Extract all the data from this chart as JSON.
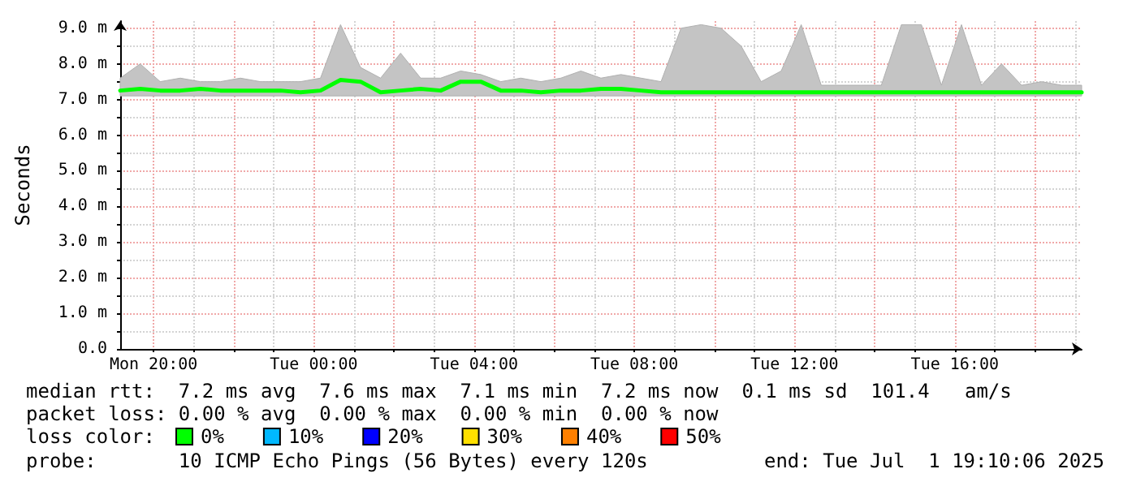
{
  "chart_data": {
    "type": "line",
    "ylabel": "Seconds",
    "legend_title": "loss color:",
    "legend": "bottom",
    "grid": true,
    "marker": "none",
    "line_style": "solid",
    "x": [
      "2025-06-30T19:10",
      "2025-06-30T19:40",
      "2025-06-30T20:10",
      "2025-06-30T20:40",
      "2025-06-30T21:10",
      "2025-06-30T21:40",
      "2025-06-30T22:10",
      "2025-06-30T22:40",
      "2025-06-30T23:10",
      "2025-06-30T23:40",
      "2025-07-01T00:10",
      "2025-07-01T00:40",
      "2025-07-01T01:10",
      "2025-07-01T01:40",
      "2025-07-01T02:10",
      "2025-07-01T02:40",
      "2025-07-01T03:10",
      "2025-07-01T03:40",
      "2025-07-01T04:10",
      "2025-07-01T04:40",
      "2025-07-01T05:10",
      "2025-07-01T05:40",
      "2025-07-01T06:10",
      "2025-07-01T06:40",
      "2025-07-01T07:10",
      "2025-07-01T07:40",
      "2025-07-01T08:10",
      "2025-07-01T08:40",
      "2025-07-01T09:10",
      "2025-07-01T09:40",
      "2025-07-01T10:10",
      "2025-07-01T10:40",
      "2025-07-01T11:10",
      "2025-07-01T11:40",
      "2025-07-01T12:10",
      "2025-07-01T12:40",
      "2025-07-01T13:10",
      "2025-07-01T13:40",
      "2025-07-01T14:10",
      "2025-07-01T14:40",
      "2025-07-01T15:10",
      "2025-07-01T15:40",
      "2025-07-01T16:10",
      "2025-07-01T16:40",
      "2025-07-01T17:10",
      "2025-07-01T17:40",
      "2025-07-01T18:10",
      "2025-07-01T18:40",
      "2025-07-01T19:10"
    ],
    "series": [
      {
        "name": "0%",
        "color": "#00ff00",
        "values": [
          7.25,
          7.3,
          7.25,
          7.25,
          7.3,
          7.25,
          7.25,
          7.25,
          7.25,
          7.2,
          7.25,
          7.55,
          7.5,
          7.2,
          7.25,
          7.3,
          7.25,
          7.5,
          7.5,
          7.25,
          7.25,
          7.2,
          7.25,
          7.25,
          7.3,
          7.3,
          7.25,
          7.2,
          7.2,
          7.2,
          7.2,
          7.2,
          7.2,
          7.2,
          7.2,
          7.2,
          7.2,
          7.2,
          7.2,
          7.2,
          7.2,
          7.2,
          7.2,
          7.2,
          7.2,
          7.2,
          7.2,
          7.2,
          7.2
        ],
        "lower": [
          7.1,
          7.1,
          7.1,
          7.1,
          7.1,
          7.1,
          7.1,
          7.1,
          7.1,
          7.1,
          7.1,
          7.1,
          7.1,
          7.1,
          7.1,
          7.1,
          7.1,
          7.1,
          7.1,
          7.1,
          7.1,
          7.1,
          7.1,
          7.1,
          7.1,
          7.1,
          7.1,
          7.1,
          7.1,
          7.1,
          7.1,
          7.1,
          7.1,
          7.1,
          7.1,
          7.1,
          7.1,
          7.1,
          7.1,
          7.1,
          7.1,
          7.1,
          7.1,
          7.1,
          7.1,
          7.1,
          7.1,
          7.1,
          7.1
        ],
        "upper": [
          7.6,
          8.0,
          7.5,
          7.6,
          7.5,
          7.5,
          7.6,
          7.5,
          7.5,
          7.5,
          7.6,
          9.1,
          7.9,
          7.6,
          8.3,
          7.6,
          7.6,
          7.8,
          7.7,
          7.5,
          7.6,
          7.5,
          7.6,
          7.8,
          7.6,
          7.7,
          7.6,
          7.5,
          9.0,
          9.1,
          9.0,
          8.5,
          7.5,
          7.8,
          9.1,
          7.4,
          7.4,
          7.4,
          7.4,
          9.1,
          9.1,
          7.4,
          9.1,
          7.4,
          8.0,
          7.4,
          7.5,
          7.4,
          7.4
        ]
      },
      {
        "name": "10%",
        "color": "#00b8ff",
        "values": [
          null,
          null,
          null,
          null,
          null,
          null,
          null,
          null,
          null,
          null,
          null,
          null,
          null,
          null,
          null,
          null,
          null,
          null,
          null,
          null,
          null,
          null,
          null,
          null,
          null,
          null,
          null,
          null,
          null,
          null,
          null,
          null,
          null,
          null,
          null,
          null,
          null,
          null,
          null,
          null,
          null,
          null,
          null,
          null,
          null,
          null,
          null,
          null,
          null
        ]
      },
      {
        "name": "20%",
        "color": "#0000ff",
        "values": [
          null,
          null,
          null,
          null,
          null,
          null,
          null,
          null,
          null,
          null,
          null,
          null,
          null,
          null,
          null,
          null,
          null,
          null,
          null,
          null,
          null,
          null,
          null,
          null,
          null,
          null,
          null,
          null,
          null,
          null,
          null,
          null,
          null,
          null,
          null,
          null,
          null,
          null,
          null,
          null,
          null,
          null,
          null,
          null,
          null,
          null,
          null,
          null,
          null
        ]
      },
      {
        "name": "30%",
        "color": "#ffe000",
        "values": [
          null,
          null,
          null,
          null,
          null,
          null,
          null,
          null,
          null,
          null,
          null,
          null,
          null,
          null,
          null,
          null,
          null,
          null,
          null,
          null,
          null,
          null,
          null,
          null,
          null,
          null,
          null,
          null,
          null,
          null,
          null,
          null,
          null,
          null,
          null,
          null,
          null,
          null,
          null,
          null,
          null,
          null,
          null,
          null,
          null,
          null,
          null,
          null,
          null
        ]
      },
      {
        "name": "40%",
        "color": "#ff8000",
        "values": [
          null,
          null,
          null,
          null,
          null,
          null,
          null,
          null,
          null,
          null,
          null,
          null,
          null,
          null,
          null,
          null,
          null,
          null,
          null,
          null,
          null,
          null,
          null,
          null,
          null,
          null,
          null,
          null,
          null,
          null,
          null,
          null,
          null,
          null,
          null,
          null,
          null,
          null,
          null,
          null,
          null,
          null,
          null,
          null,
          null,
          null,
          null,
          null,
          null
        ]
      },
      {
        "name": "50%",
        "color": "#ff0000",
        "values": [
          null,
          null,
          null,
          null,
          null,
          null,
          null,
          null,
          null,
          null,
          null,
          null,
          null,
          null,
          null,
          null,
          null,
          null,
          null,
          null,
          null,
          null,
          null,
          null,
          null,
          null,
          null,
          null,
          null,
          null,
          null,
          null,
          null,
          null,
          null,
          null,
          null,
          null,
          null,
          null,
          null,
          null,
          null,
          null,
          null,
          null,
          null,
          null,
          null
        ]
      }
    ],
    "xlim": [
      "2025-06-30T19:10",
      "2025-07-01T19:10"
    ],
    "xticks": [
      {
        "value": "2025-06-30T20:00",
        "label": "Mon 20:00"
      },
      {
        "value": "2025-06-30T21:00",
        "label": null
      },
      {
        "value": "2025-06-30T22:00",
        "label": null
      },
      {
        "value": "2025-06-30T23:00",
        "label": null
      },
      {
        "value": "2025-07-01T00:00",
        "label": "Tue 00:00"
      },
      {
        "value": "2025-07-01T01:00",
        "label": null
      },
      {
        "value": "2025-07-01T02:00",
        "label": null
      },
      {
        "value": "2025-07-01T03:00",
        "label": null
      },
      {
        "value": "2025-07-01T04:00",
        "label": "Tue 04:00"
      },
      {
        "value": "2025-07-01T05:00",
        "label": null
      },
      {
        "value": "2025-07-01T06:00",
        "label": null
      },
      {
        "value": "2025-07-01T07:00",
        "label": null
      },
      {
        "value": "2025-07-01T08:00",
        "label": "Tue 08:00"
      },
      {
        "value": "2025-07-01T09:00",
        "label": null
      },
      {
        "value": "2025-07-01T10:00",
        "label": null
      },
      {
        "value": "2025-07-01T11:00",
        "label": null
      },
      {
        "value": "2025-07-01T12:00",
        "label": "Tue 12:00"
      },
      {
        "value": "2025-07-01T13:00",
        "label": null
      },
      {
        "value": "2025-07-01T14:00",
        "label": null
      },
      {
        "value": "2025-07-01T15:00",
        "label": null
      },
      {
        "value": "2025-07-01T16:00",
        "label": "Tue 16:00"
      },
      {
        "value": "2025-07-01T17:00",
        "label": null
      },
      {
        "value": "2025-07-01T18:00",
        "label": null
      },
      {
        "value": "2025-07-01T19:00",
        "label": null
      }
    ],
    "ylim": [
      0,
      9.2
    ],
    "yticks": [
      {
        "value": 0,
        "label": "0.0"
      },
      {
        "value": 0.5,
        "label": null
      },
      {
        "value": 1,
        "label": "1.0 m"
      },
      {
        "value": 1.5,
        "label": null
      },
      {
        "value": 2,
        "label": "2.0 m"
      },
      {
        "value": 2.5,
        "label": null
      },
      {
        "value": 3,
        "label": "3.0 m"
      },
      {
        "value": 3.5,
        "label": null
      },
      {
        "value": 4,
        "label": "4.0 m"
      },
      {
        "value": 4.5,
        "label": null
      },
      {
        "value": 5,
        "label": "5.0 m"
      },
      {
        "value": 5.5,
        "label": null
      },
      {
        "value": 6,
        "label": "6.0 m"
      },
      {
        "value": 6.5,
        "label": null
      },
      {
        "value": 7,
        "label": "7.0 m"
      },
      {
        "value": 7.5,
        "label": null
      },
      {
        "value": 8,
        "label": "8.0 m"
      },
      {
        "value": 8.5,
        "label": null
      },
      {
        "value": 9,
        "label": "9.0 m"
      }
    ],
    "annotations": [
      "median rtt:  7.2 ms avg  7.6 ms max  7.1 ms min  7.2 ms now  0.1 ms sd  101.4   am/s",
      "packet loss: 0.00 % avg  0.00 % max  0.00 % min  0.00 % now",
      "probe:       10 ICMP Echo Pings (56 Bytes) every 120s",
      "end: Tue Jul  1 19:10:06 2025"
    ]
  }
}
